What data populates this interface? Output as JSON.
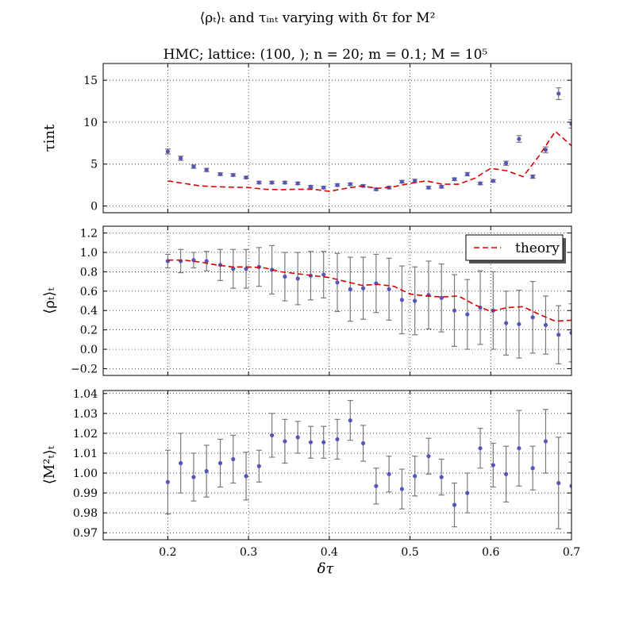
{
  "figure": {
    "title": "⟨ρₜ⟩ₜ and τᵢₙₜ varying with δτ for M²",
    "subtitle": "HMC; lattice: (100, ); n = 20; m = 0.1; M = 10⁵",
    "xlabel": "δτ"
  },
  "colors": {
    "points": "#5555bb",
    "errorbars": "#7a7a7a",
    "theory": "#dd0000"
  },
  "legend": {
    "label": "theory",
    "location": "upper-right-of-middle-panel"
  },
  "chart_data": [
    {
      "type": "scatter",
      "panel": "top",
      "ylabel": "τint",
      "xlim": [
        0.12,
        0.7
      ],
      "ylim": [
        -0.8,
        17
      ],
      "xticks": [
        0.2,
        0.3,
        0.4,
        0.5,
        0.6,
        0.7
      ],
      "yticks": [
        0,
        5,
        10,
        15
      ],
      "ytick_labels": [
        "0",
        "5",
        "10",
        "15"
      ],
      "grid": true,
      "series": [
        {
          "kind": "errorbar",
          "x": [
            0.2,
            0.216,
            0.232,
            0.248,
            0.265,
            0.281,
            0.297,
            0.313,
            0.329,
            0.345,
            0.361,
            0.377,
            0.393,
            0.41,
            0.426,
            0.442,
            0.458,
            0.474,
            0.49,
            0.506,
            0.523,
            0.539,
            0.555,
            0.571,
            0.587,
            0.603,
            0.619,
            0.635,
            0.652,
            0.668,
            0.684,
            0.7
          ],
          "y": [
            6.5,
            5.7,
            4.7,
            4.3,
            3.8,
            3.7,
            3.4,
            2.8,
            2.8,
            2.8,
            2.7,
            2.3,
            2.2,
            2.5,
            2.6,
            2.4,
            2.0,
            2.2,
            2.9,
            3.0,
            2.2,
            2.3,
            3.2,
            3.8,
            2.7,
            3.0,
            5.1,
            8.0,
            3.5,
            6.7,
            13.4,
            9.8
          ],
          "err": [
            0.3,
            0.25,
            0.2,
            0.2,
            0.15,
            0.15,
            0.15,
            0.15,
            0.15,
            0.15,
            0.15,
            0.15,
            0.15,
            0.15,
            0.15,
            0.15,
            0.15,
            0.15,
            0.15,
            0.2,
            0.15,
            0.15,
            0.15,
            0.2,
            0.15,
            0.15,
            0.25,
            0.4,
            0.2,
            0.35,
            0.7,
            0.5
          ]
        },
        {
          "kind": "line",
          "name": "theory",
          "x": [
            0.2,
            0.22,
            0.24,
            0.26,
            0.28,
            0.3,
            0.32,
            0.34,
            0.36,
            0.38,
            0.4,
            0.42,
            0.44,
            0.46,
            0.48,
            0.5,
            0.52,
            0.54,
            0.56,
            0.58,
            0.6,
            0.62,
            0.64,
            0.66,
            0.68,
            0.7
          ],
          "y": [
            3.0,
            2.7,
            2.4,
            2.3,
            2.25,
            2.2,
            2.0,
            1.95,
            2.0,
            2.0,
            1.75,
            2.1,
            2.4,
            2.1,
            2.3,
            2.7,
            3.0,
            2.6,
            2.6,
            3.3,
            4.5,
            4.2,
            3.5,
            6.0,
            8.9,
            7.2
          ]
        }
      ]
    },
    {
      "type": "scatter",
      "panel": "middle",
      "ylabel": "⟨ρₜ⟩ₜ",
      "xlim": [
        0.12,
        0.7
      ],
      "ylim": [
        -0.27,
        1.27
      ],
      "xticks": [
        0.2,
        0.3,
        0.4,
        0.5,
        0.6,
        0.7
      ],
      "yticks": [
        -0.2,
        0.0,
        0.2,
        0.4,
        0.6,
        0.8,
        1.0,
        1.2
      ],
      "ytick_labels": [
        "−0.2",
        "0.0",
        "0.2",
        "0.4",
        "0.6",
        "0.8",
        "1.0",
        "1.2"
      ],
      "grid": true,
      "series": [
        {
          "kind": "errorbar",
          "x": [
            0.2,
            0.216,
            0.232,
            0.248,
            0.265,
            0.281,
            0.297,
            0.313,
            0.329,
            0.345,
            0.361,
            0.377,
            0.393,
            0.41,
            0.426,
            0.442,
            0.458,
            0.474,
            0.49,
            0.506,
            0.523,
            0.539,
            0.555,
            0.571,
            0.587,
            0.603,
            0.619,
            0.635,
            0.652,
            0.668,
            0.684,
            0.7
          ],
          "y": [
            0.91,
            0.91,
            0.92,
            0.91,
            0.87,
            0.83,
            0.83,
            0.85,
            0.82,
            0.75,
            0.73,
            0.76,
            0.77,
            0.69,
            0.62,
            0.63,
            0.68,
            0.62,
            0.51,
            0.5,
            0.56,
            0.53,
            0.4,
            0.36,
            0.43,
            0.4,
            0.27,
            0.26,
            0.33,
            0.25,
            0.15,
            0.17
          ],
          "err": [
            0.07,
            0.12,
            0.08,
            0.1,
            0.16,
            0.2,
            0.2,
            0.2,
            0.25,
            0.25,
            0.27,
            0.25,
            0.24,
            0.3,
            0.33,
            0.32,
            0.3,
            0.32,
            0.35,
            0.35,
            0.35,
            0.35,
            0.37,
            0.36,
            0.38,
            0.4,
            0.33,
            0.35,
            0.37,
            0.3,
            0.3,
            0.3
          ]
        },
        {
          "kind": "line",
          "name": "theory",
          "x": [
            0.2,
            0.22,
            0.24,
            0.26,
            0.28,
            0.3,
            0.32,
            0.34,
            0.36,
            0.38,
            0.4,
            0.42,
            0.44,
            0.46,
            0.48,
            0.5,
            0.52,
            0.54,
            0.56,
            0.58,
            0.6,
            0.62,
            0.64,
            0.66,
            0.68,
            0.7
          ],
          "y": [
            0.92,
            0.92,
            0.9,
            0.87,
            0.85,
            0.85,
            0.84,
            0.8,
            0.78,
            0.76,
            0.74,
            0.7,
            0.66,
            0.67,
            0.65,
            0.57,
            0.55,
            0.54,
            0.55,
            0.46,
            0.39,
            0.43,
            0.44,
            0.36,
            0.29,
            0.3
          ]
        }
      ]
    },
    {
      "type": "scatter",
      "panel": "bottom",
      "ylabel": "⟨M²ₜ⟩ₜ",
      "xlim": [
        0.12,
        0.7
      ],
      "ylim": [
        0.9665,
        1.0415
      ],
      "xticks": [
        0.2,
        0.3,
        0.4,
        0.5,
        0.6,
        0.7
      ],
      "xtick_labels": [
        "0.2",
        "0.3",
        "0.4",
        "0.5",
        "0.6",
        "0.7"
      ],
      "yticks": [
        0.97,
        0.98,
        0.99,
        1.0,
        1.01,
        1.02,
        1.03,
        1.04
      ],
      "ytick_labels": [
        "0.97",
        "0.98",
        "0.99",
        "1.00",
        "1.01",
        "1.02",
        "1.03",
        "1.04"
      ],
      "grid": true,
      "series": [
        {
          "kind": "errorbar",
          "x": [
            0.2,
            0.216,
            0.232,
            0.248,
            0.265,
            0.281,
            0.297,
            0.313,
            0.329,
            0.345,
            0.361,
            0.377,
            0.393,
            0.41,
            0.426,
            0.442,
            0.458,
            0.474,
            0.49,
            0.506,
            0.523,
            0.539,
            0.555,
            0.571,
            0.587,
            0.603,
            0.619,
            0.635,
            0.652,
            0.668,
            0.684,
            0.7
          ],
          "y": [
            0.9955,
            1.005,
            0.998,
            1.001,
            1.005,
            1.007,
            0.9985,
            1.0035,
            1.019,
            1.016,
            1.018,
            1.0155,
            1.0155,
            1.017,
            1.0265,
            1.015,
            0.9935,
            0.9995,
            0.992,
            0.9985,
            1.0085,
            0.998,
            0.984,
            0.99,
            1.0125,
            1.004,
            0.9995,
            1.0125,
            1.0025,
            1.016,
            0.995,
            0.9935
          ],
          "err": [
            0.016,
            0.015,
            0.012,
            0.013,
            0.012,
            0.012,
            0.012,
            0.008,
            0.011,
            0.011,
            0.008,
            0.008,
            0.008,
            0.01,
            0.01,
            0.009,
            0.009,
            0.009,
            0.01,
            0.01,
            0.009,
            0.009,
            0.011,
            0.01,
            0.01,
            0.011,
            0.014,
            0.019,
            0.011,
            0.016,
            0.023,
            0.012
          ]
        }
      ]
    }
  ]
}
